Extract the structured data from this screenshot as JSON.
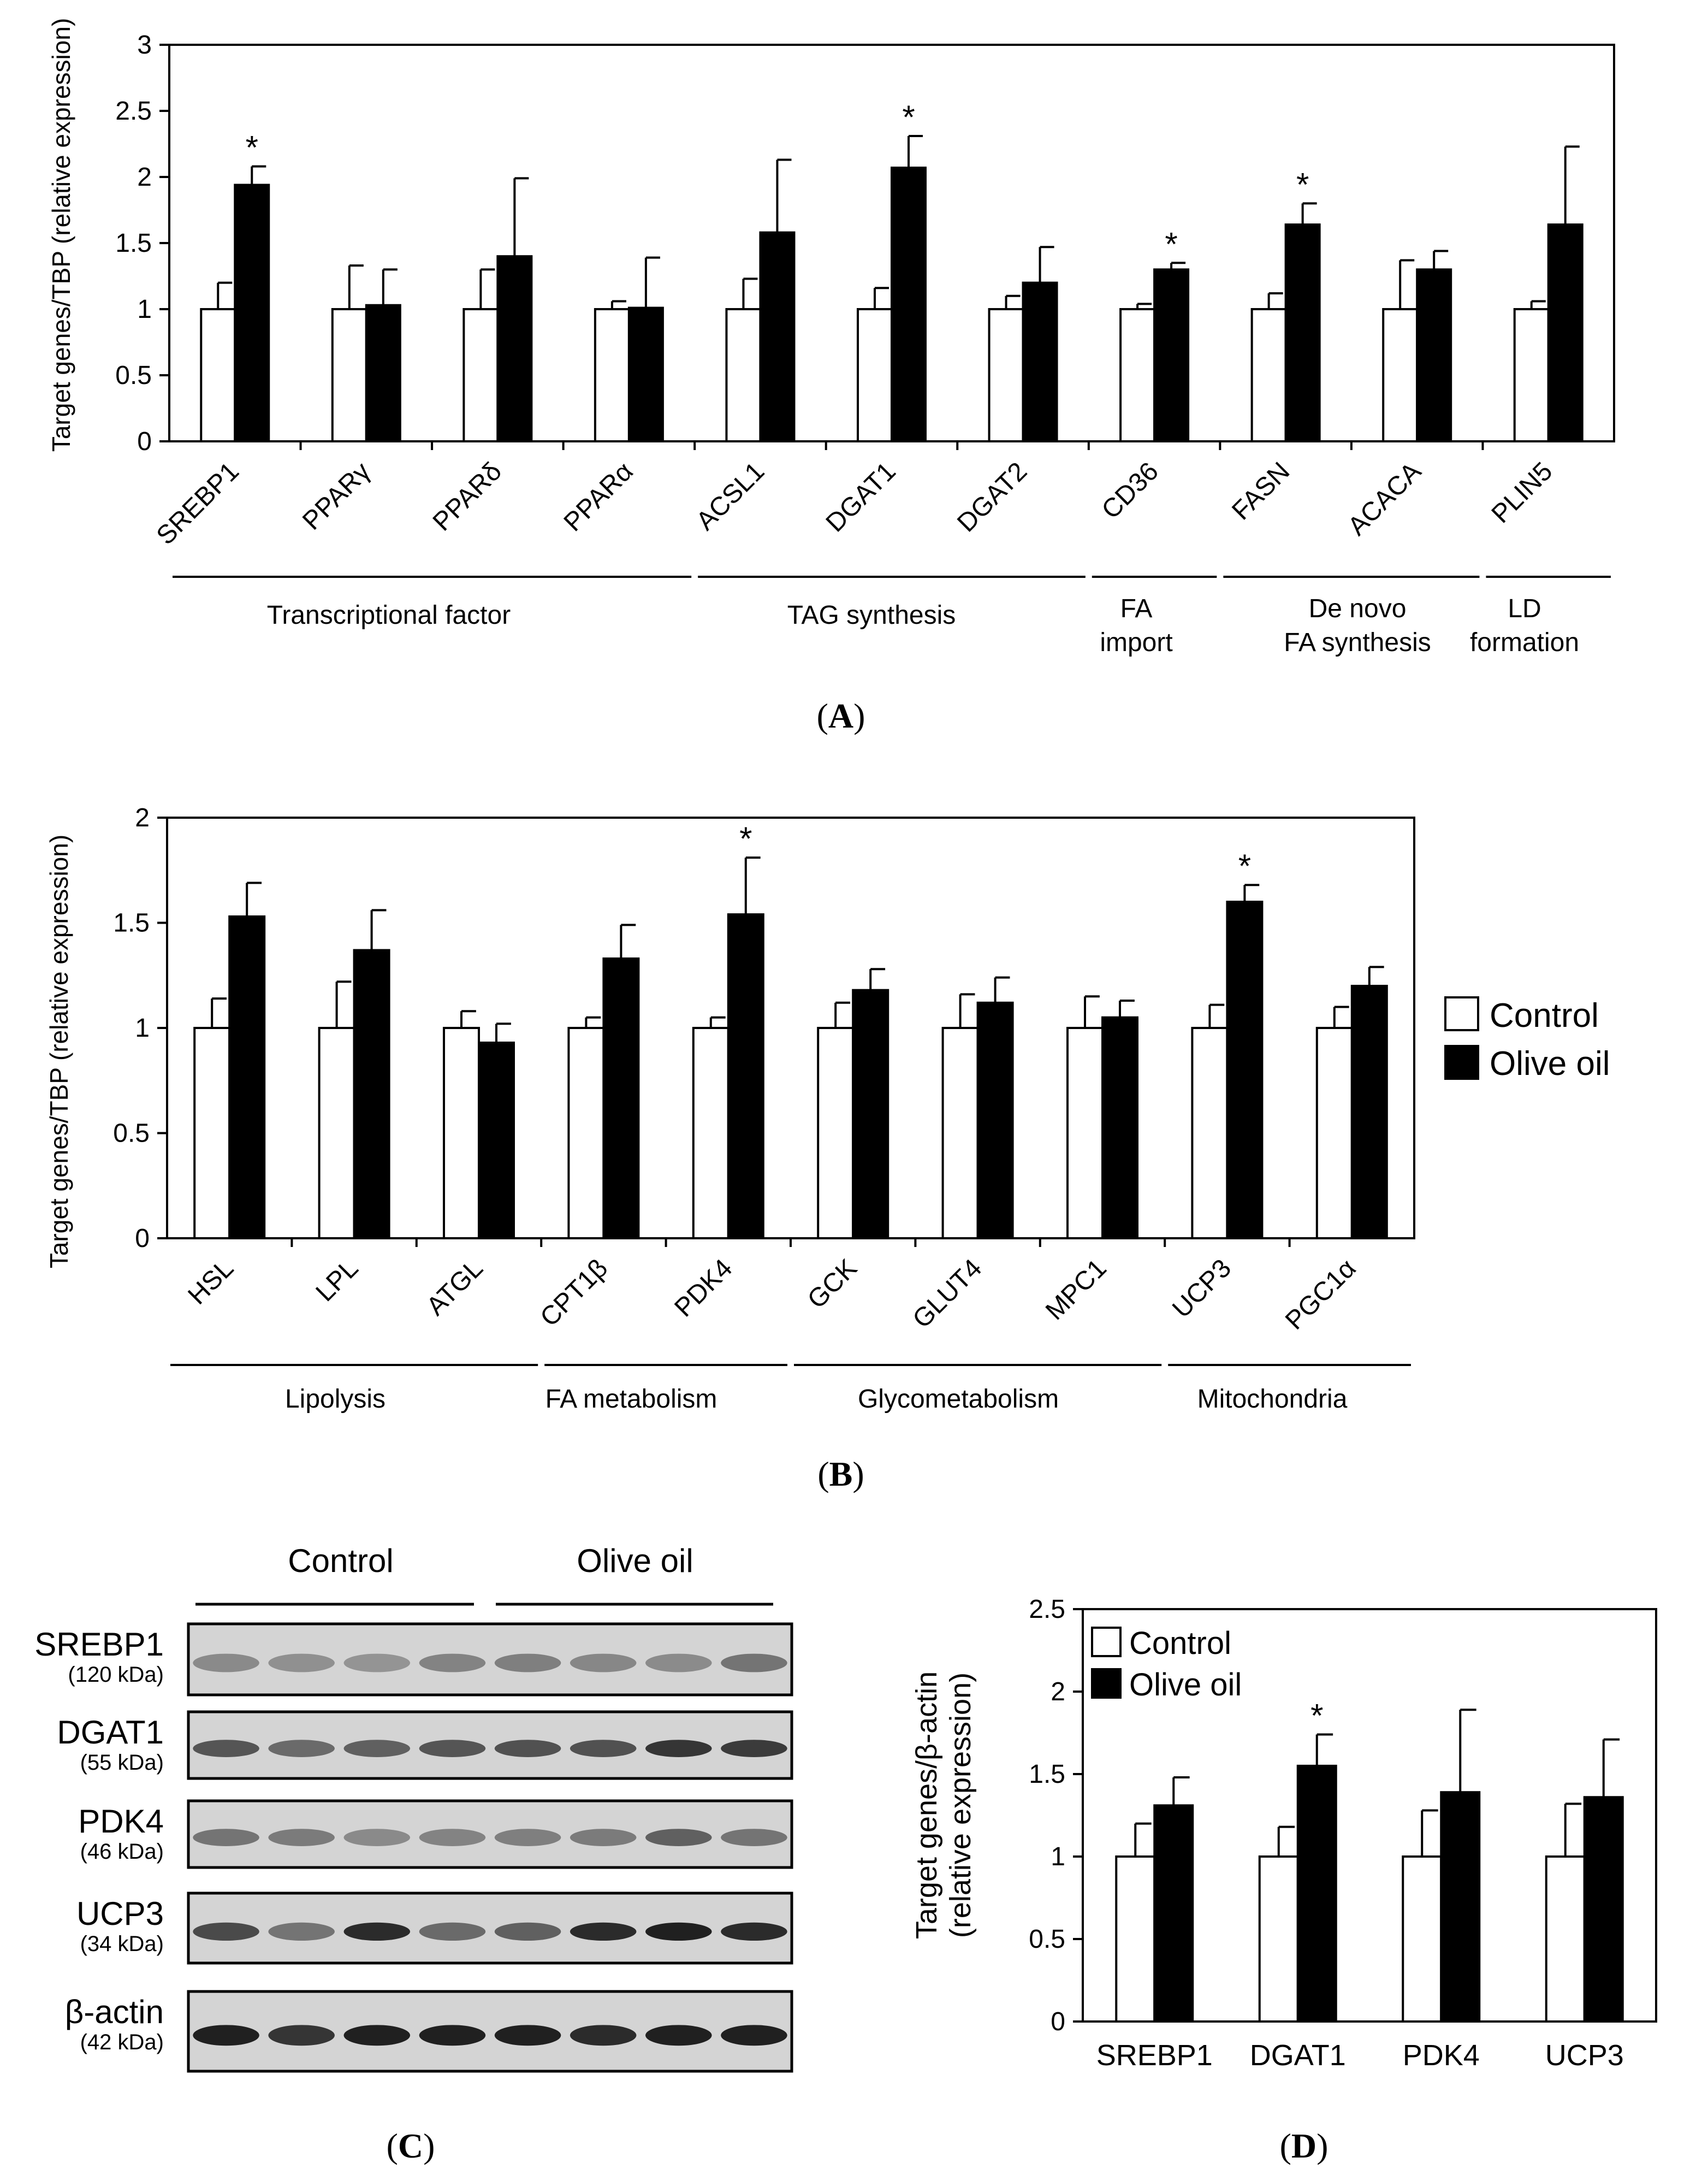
{
  "colors": {
    "control": "#ffffff",
    "olive": "#000000",
    "axis": "#000000"
  },
  "legend": {
    "control": "Control",
    "olive": "Olive oil"
  },
  "panel_labels": {
    "a": "A",
    "b": "B",
    "c": "C",
    "d": "D"
  },
  "chart_data": [
    {
      "id": "A",
      "type": "bar",
      "ylabel": "Target genes/TBP (relative expression)",
      "ylim": [
        0,
        3
      ],
      "yticks": [
        "0",
        "0.5",
        "1",
        "1.5",
        "2",
        "2.5",
        "3"
      ],
      "categories": [
        "SREBP1",
        "PPARγ",
        "PPARδ",
        "PPARα",
        "ACSL1",
        "DGAT1",
        "DGAT2",
        "CD36",
        "FASN",
        "ACACA",
        "PLIN5"
      ],
      "series": [
        {
          "name": "Control",
          "values": [
            1,
            1,
            1,
            1,
            1,
            1,
            1,
            1,
            1,
            1,
            1
          ],
          "errors": [
            0.2,
            0.33,
            0.3,
            0.06,
            0.23,
            0.16,
            0.1,
            0.04,
            0.12,
            0.37,
            0.06
          ]
        },
        {
          "name": "Olive oil",
          "values": [
            1.94,
            1.03,
            1.4,
            1.01,
            1.58,
            2.07,
            1.2,
            1.3,
            1.64,
            1.3,
            1.64
          ],
          "errors": [
            0.14,
            0.27,
            0.59,
            0.38,
            0.55,
            0.24,
            0.27,
            0.05,
            0.16,
            0.14,
            0.59
          ]
        }
      ],
      "significant": [
        "SREBP1",
        "DGAT1",
        "CD36",
        "FASN"
      ],
      "significance_mark": "*",
      "groups": [
        {
          "label": "Transcriptional factor",
          "from": 0,
          "to": 3
        },
        {
          "label": "TAG synthesis",
          "from": 4,
          "to": 6
        },
        {
          "label": "FA import",
          "from": 7,
          "to": 7
        },
        {
          "label": "De novo FA synthesis",
          "from": 8,
          "to": 9
        },
        {
          "label": "LD formation",
          "from": 10,
          "to": 10
        }
      ],
      "group_label_lines": {
        "fa_import": [
          "FA",
          "import"
        ],
        "de_novo": [
          "De novo",
          "FA synthesis"
        ],
        "ld": [
          "LD",
          "formation"
        ]
      }
    },
    {
      "id": "B",
      "type": "bar",
      "ylabel": "Target genes/TBP (relative expression)",
      "ylim": [
        0,
        2
      ],
      "yticks": [
        "0",
        "0.5",
        "1",
        "1.5",
        "2"
      ],
      "categories": [
        "HSL",
        "LPL",
        "ATGL",
        "CPT1β",
        "PDK4",
        "GCK",
        "GLUT4",
        "MPC1",
        "UCP3",
        "PGC1α"
      ],
      "series": [
        {
          "name": "Control",
          "values": [
            1,
            1,
            1,
            1,
            1,
            1,
            1,
            1,
            1,
            1
          ],
          "errors": [
            0.14,
            0.22,
            0.08,
            0.05,
            0.05,
            0.12,
            0.16,
            0.15,
            0.11,
            0.1
          ]
        },
        {
          "name": "Olive oil",
          "values": [
            1.53,
            1.37,
            0.93,
            1.33,
            1.54,
            1.18,
            1.12,
            1.05,
            1.6,
            1.2
          ],
          "errors": [
            0.16,
            0.19,
            0.09,
            0.16,
            0.27,
            0.1,
            0.12,
            0.08,
            0.08,
            0.09
          ]
        }
      ],
      "significant": [
        "PDK4",
        "UCP3"
      ],
      "significance_mark": "*",
      "groups": [
        {
          "label": "Lipolysis",
          "from": 0,
          "to": 2
        },
        {
          "label": "FA metabolism",
          "from": 3,
          "to": 4
        },
        {
          "label": "Glycometabolism",
          "from": 5,
          "to": 7
        },
        {
          "label": "Mitochondria",
          "from": 8,
          "to": 9
        }
      ]
    },
    {
      "id": "D",
      "type": "bar",
      "ylabel_lines": [
        "Target genes/β-actin",
        "(relative expression)"
      ],
      "ylim": [
        0,
        2.5
      ],
      "yticks": [
        "0",
        "0.5",
        "1",
        "1.5",
        "2",
        "2.5"
      ],
      "categories": [
        "SREBP1",
        "DGAT1",
        "PDK4",
        "UCP3"
      ],
      "series": [
        {
          "name": "Control",
          "values": [
            1,
            1,
            1,
            1
          ],
          "errors": [
            0.2,
            0.18,
            0.28,
            0.32
          ]
        },
        {
          "name": "Olive oil",
          "values": [
            1.31,
            1.55,
            1.39,
            1.36
          ],
          "errors": [
            0.17,
            0.19,
            0.5,
            0.35
          ]
        }
      ],
      "significant": [
        "DGAT1"
      ],
      "significance_mark": "*"
    }
  ],
  "western_blot": {
    "header": {
      "control": "Control",
      "olive": "Olive oil"
    },
    "lanes_per_group": 4,
    "rows": [
      {
        "name": "SREBP1",
        "kda": "(120 kDa)",
        "intensity": [
          0.35,
          0.32,
          0.3,
          0.38,
          0.4,
          0.36,
          0.34,
          0.45
        ]
      },
      {
        "name": "DGAT1",
        "kda": "(55 kDa)",
        "intensity": [
          0.6,
          0.5,
          0.55,
          0.6,
          0.62,
          0.62,
          0.75,
          0.72
        ]
      },
      {
        "name": "PDK4",
        "kda": "(46 kDa)",
        "intensity": [
          0.45,
          0.42,
          0.35,
          0.38,
          0.4,
          0.42,
          0.55,
          0.45
        ]
      },
      {
        "name": "UCP3",
        "kda": "(34 kDa)",
        "intensity": [
          0.65,
          0.45,
          0.8,
          0.5,
          0.55,
          0.8,
          0.85,
          0.8
        ]
      },
      {
        "name": "β-actin",
        "kda": "(42 kDa)",
        "intensity": [
          0.85,
          0.75,
          0.85,
          0.85,
          0.85,
          0.8,
          0.85,
          0.85
        ]
      }
    ]
  }
}
